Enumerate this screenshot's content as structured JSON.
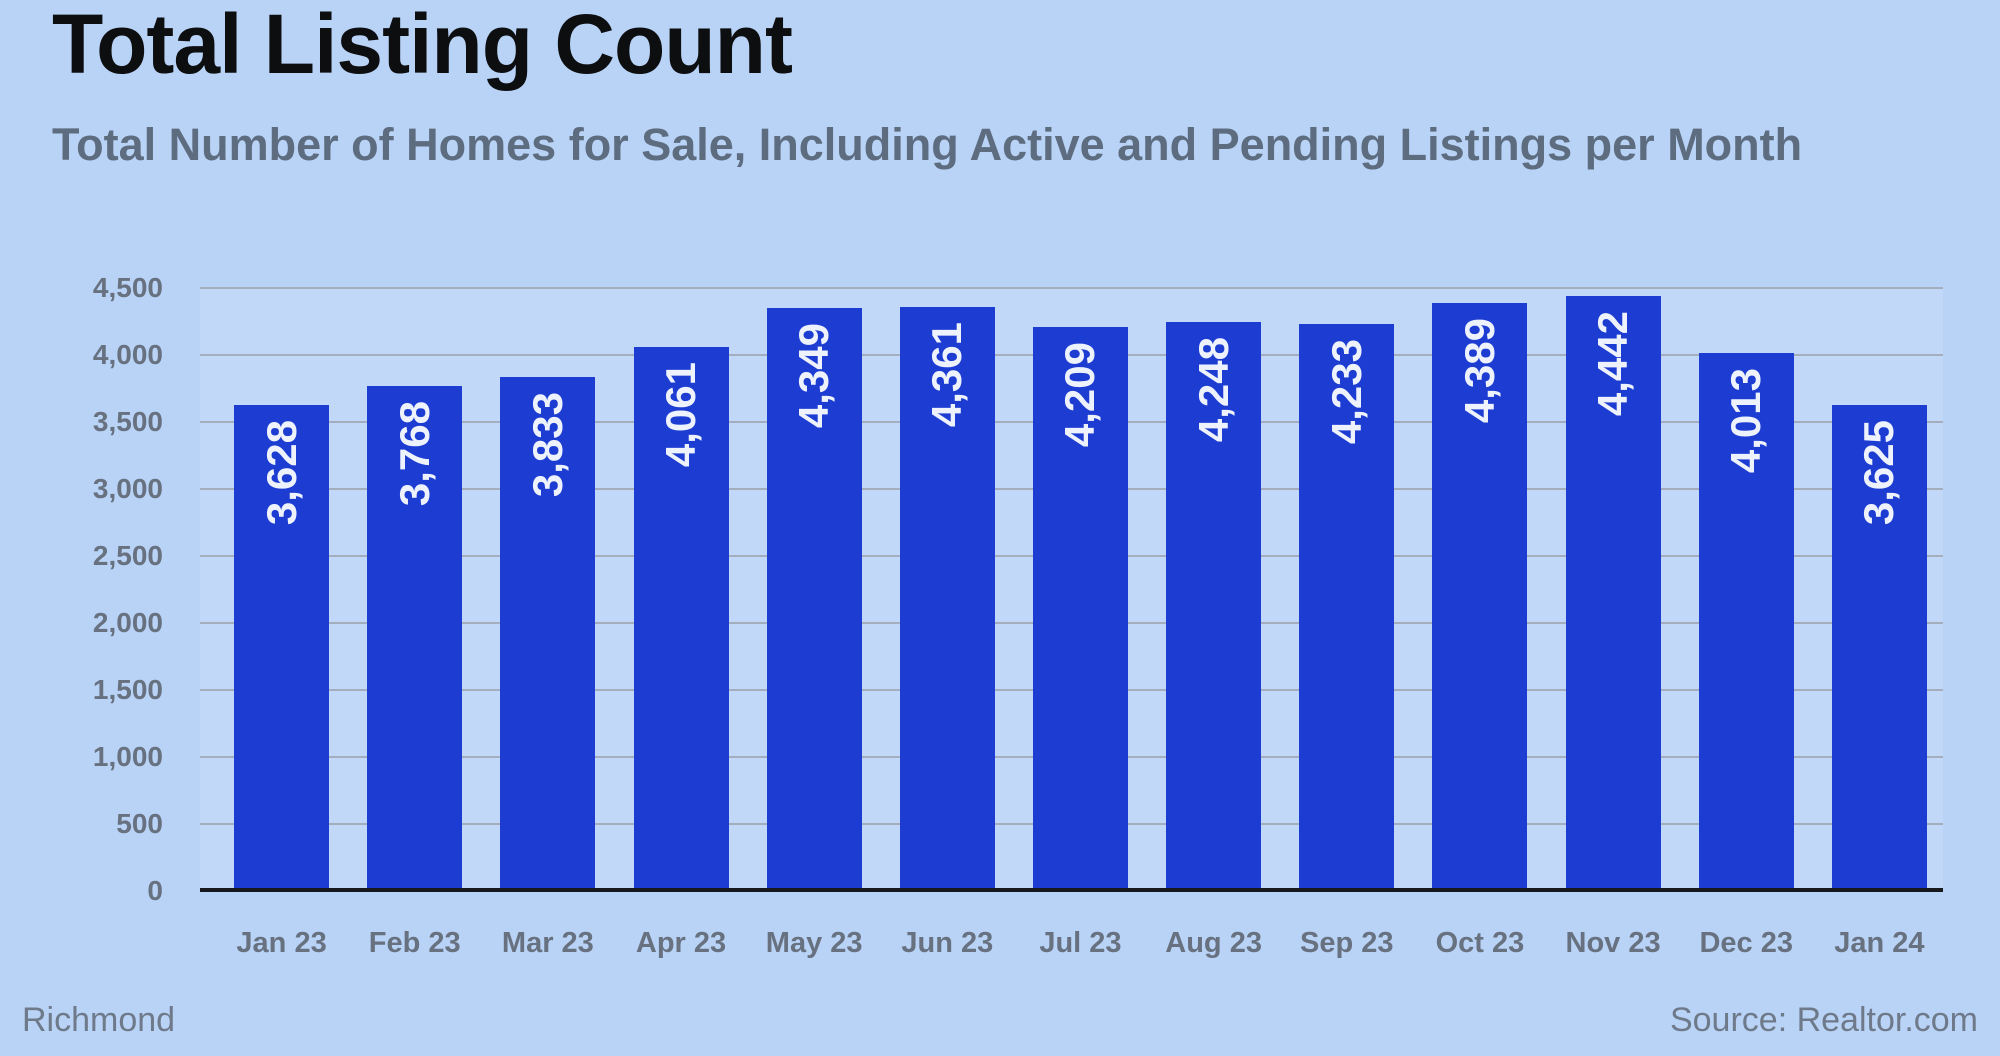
{
  "header": {
    "title": "Total Listing Count",
    "subtitle": "Total Number of Homes for Sale, Including Active and Pending Listings per Month"
  },
  "footer": {
    "region": "Richmond",
    "source": "Source: Realtor.com"
  },
  "colors": {
    "background": "#b9d3f7",
    "bar": "#1d3dd2",
    "bar_label": "#edf2fd",
    "gridline": "#a4aebd",
    "axis_line": "#17191d",
    "tick_label": "#67717f",
    "title": "#0d0e10",
    "subtitle": "#5d6c7f",
    "footer_text": "#6e7a89"
  },
  "chart_data": {
    "type": "bar",
    "title": "Total Listing Count",
    "subtitle": "Total Number of Homes for Sale, Including Active and Pending Listings per Month",
    "categories": [
      "Jan 23",
      "Feb 23",
      "Mar 23",
      "Apr 23",
      "May 23",
      "Jun 23",
      "Jul 23",
      "Aug 23",
      "Sep 23",
      "Oct 23",
      "Nov 23",
      "Dec 23",
      "Jan 24"
    ],
    "values": [
      3628,
      3768,
      3833,
      4061,
      4349,
      4361,
      4209,
      4248,
      4233,
      4389,
      4442,
      4013,
      3625
    ],
    "value_labels": [
      "3,628",
      "3,768",
      "3,833",
      "4,061",
      "4,349",
      "4,361",
      "4,209",
      "4,248",
      "4,233",
      "4,389",
      "4,442",
      "4,013",
      "3,625"
    ],
    "value_label_rotation": -90,
    "xlabel": "",
    "ylabel": "",
    "ylim": [
      0,
      4500
    ],
    "y_tick_step": 500,
    "y_ticks": [
      "0",
      "500",
      "1,000",
      "1,500",
      "2,000",
      "2,500",
      "3,000",
      "3,500",
      "4,000",
      "4,500"
    ],
    "grid": "horizontal",
    "legend": "none"
  }
}
